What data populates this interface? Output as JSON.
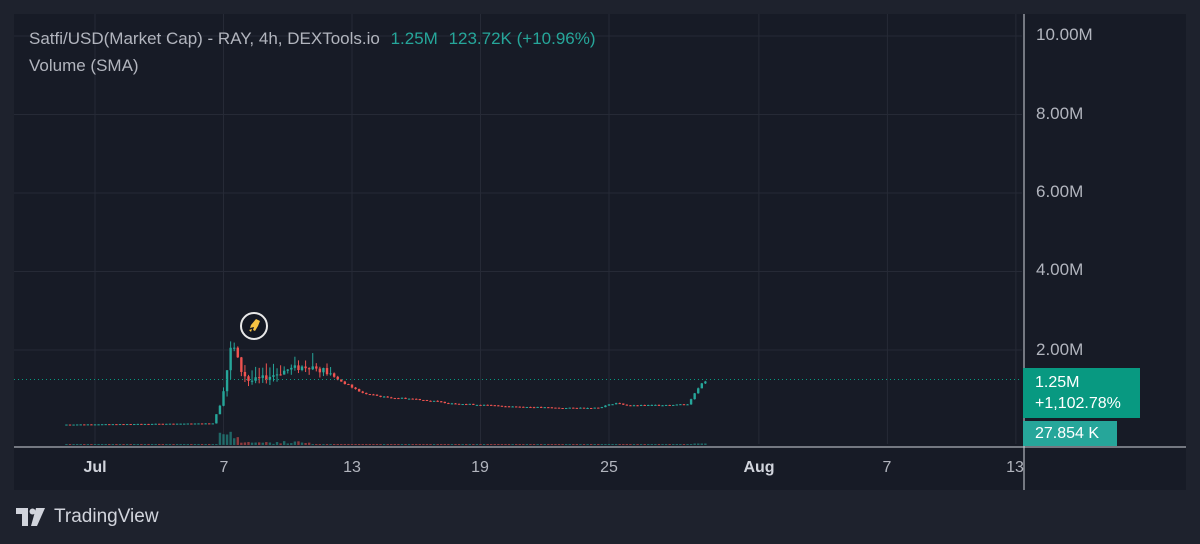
{
  "legend": {
    "symbol": "Satfi/USD(Market Cap)",
    "details": " - RAY, 4h, DEXTools.io",
    "last": "1.25M",
    "change": "123.72K (+10.96%)",
    "volume_label": "Volume (SMA)"
  },
  "price_tag": {
    "value": "1.25M",
    "change": "+1,102.78%"
  },
  "volume_tag": "27.854 K",
  "branding": "TradingView",
  "colors": {
    "up": "#26a69a",
    "down": "#ef5350",
    "background": "#171b26",
    "grid": "#262a36",
    "tag": "#089981"
  },
  "chart_data": {
    "type": "candlestick",
    "interval": "4h",
    "y_axis": {
      "ticks": [
        "10.00M",
        "8.00M",
        "6.00M",
        "4.00M",
        "2.00M"
      ],
      "ylim": [
        0,
        10500000
      ]
    },
    "x_axis": {
      "tick_labels": [
        "Jul",
        "7",
        "13",
        "19",
        "25",
        "Aug",
        "7",
        "13"
      ],
      "bold_labels": [
        "Jul",
        "Aug"
      ],
      "range_days_from_jul1": [
        -2,
        43
      ]
    },
    "last_value": 1250000,
    "last_volume": 27854,
    "grid": true,
    "series": [
      {
        "name": "Satfi/USD(Market Cap)",
        "points": [
          {
            "day": -1.5,
            "close": 100000
          },
          {
            "day": 5.5,
            "close": 130000
          },
          {
            "day": 5.9,
            "close": 700000
          },
          {
            "day": 6.1,
            "close": 1300000
          },
          {
            "day": 6.4,
            "close": 2200000
          },
          {
            "day": 6.8,
            "close": 1500000
          },
          {
            "day": 7.2,
            "close": 1200000
          },
          {
            "day": 8.0,
            "close": 1300000
          },
          {
            "day": 9.0,
            "close": 1500000
          },
          {
            "day": 10.0,
            "close": 1600000
          },
          {
            "day": 10.6,
            "close": 1500000
          },
          {
            "day": 11.5,
            "close": 1200000
          },
          {
            "day": 12.5,
            "close": 900000
          },
          {
            "day": 13.5,
            "close": 800000
          },
          {
            "day": 15.0,
            "close": 750000
          },
          {
            "day": 16.5,
            "close": 650000
          },
          {
            "day": 18.0,
            "close": 600000
          },
          {
            "day": 20.0,
            "close": 550000
          },
          {
            "day": 22.0,
            "close": 520000
          },
          {
            "day": 23.5,
            "close": 530000
          },
          {
            "day": 24.3,
            "close": 650000
          },
          {
            "day": 25.0,
            "close": 580000
          },
          {
            "day": 26.5,
            "close": 600000
          },
          {
            "day": 27.7,
            "close": 620000
          },
          {
            "day": 28.0,
            "close": 900000
          },
          {
            "day": 28.3,
            "close": 1150000
          },
          {
            "day": 28.6,
            "close": 1250000
          }
        ]
      }
    ]
  }
}
